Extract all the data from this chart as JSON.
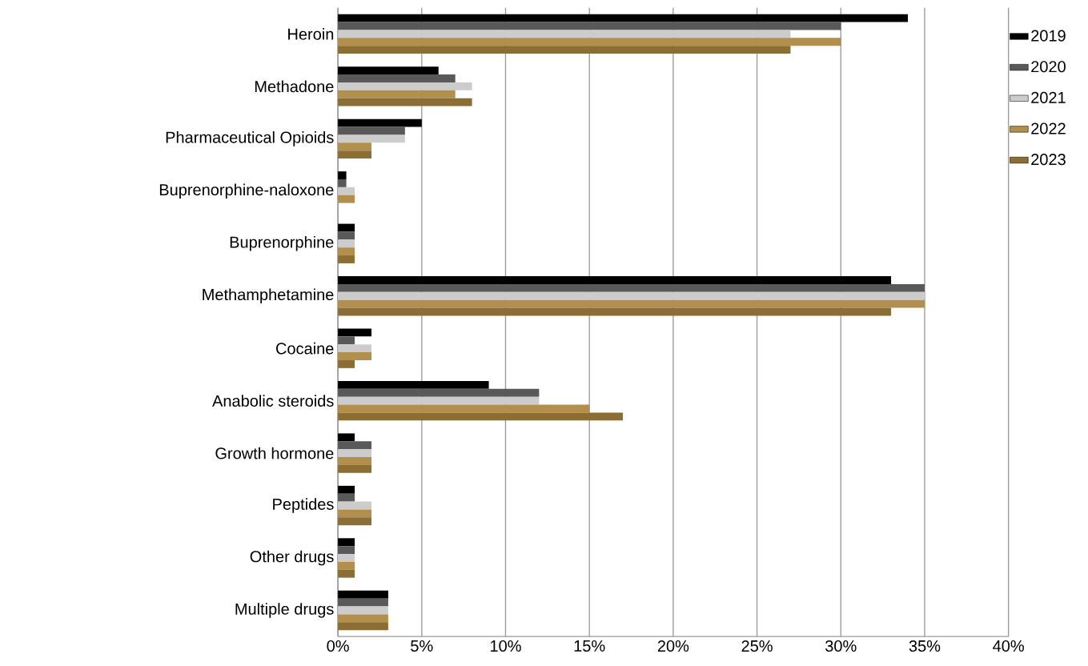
{
  "chart_data": {
    "type": "bar",
    "orientation": "horizontal",
    "categories": [
      "Heroin",
      "Methadone",
      "Pharmaceutical Opioids",
      "Buprenorphine-naloxone",
      "Buprenorphine",
      "Methamphetamine",
      "Cocaine",
      "Anabolic steroids",
      "Growth hormone",
      "Peptides",
      "Other drugs",
      "Multiple drugs"
    ],
    "series": [
      {
        "name": "2019",
        "color": "#000000",
        "values": [
          34,
          6,
          5,
          0.5,
          1,
          33,
          2,
          9,
          1,
          1,
          1,
          3
        ]
      },
      {
        "name": "2020",
        "color": "#595959",
        "values": [
          30,
          7,
          4,
          0.5,
          1,
          35,
          1,
          12,
          2,
          1,
          1,
          3
        ]
      },
      {
        "name": "2021",
        "color": "#cccccc",
        "values": [
          27,
          8,
          4,
          1,
          1,
          35,
          2,
          12,
          2,
          2,
          1,
          3
        ]
      },
      {
        "name": "2022",
        "color": "#b38f4d",
        "values": [
          30,
          7,
          2,
          1,
          1,
          35,
          2,
          15,
          2,
          2,
          1,
          3
        ]
      },
      {
        "name": "2023",
        "color": "#8c6d33",
        "values": [
          27,
          8,
          2,
          0,
          1,
          33,
          1,
          17,
          2,
          2,
          1,
          3
        ]
      }
    ],
    "xlim": [
      0,
      40
    ],
    "xticks": [
      {
        "value": 0,
        "label": "0%"
      },
      {
        "value": 5,
        "label": "5%"
      },
      {
        "value": 10,
        "label": "10%"
      },
      {
        "value": 15,
        "label": "15%"
      },
      {
        "value": 20,
        "label": "20%"
      },
      {
        "value": 25,
        "label": "25%"
      },
      {
        "value": 30,
        "label": "30%"
      },
      {
        "value": 35,
        "label": "35%"
      },
      {
        "value": 40,
        "label": "40%"
      }
    ],
    "grid": "x",
    "legend": "right"
  }
}
